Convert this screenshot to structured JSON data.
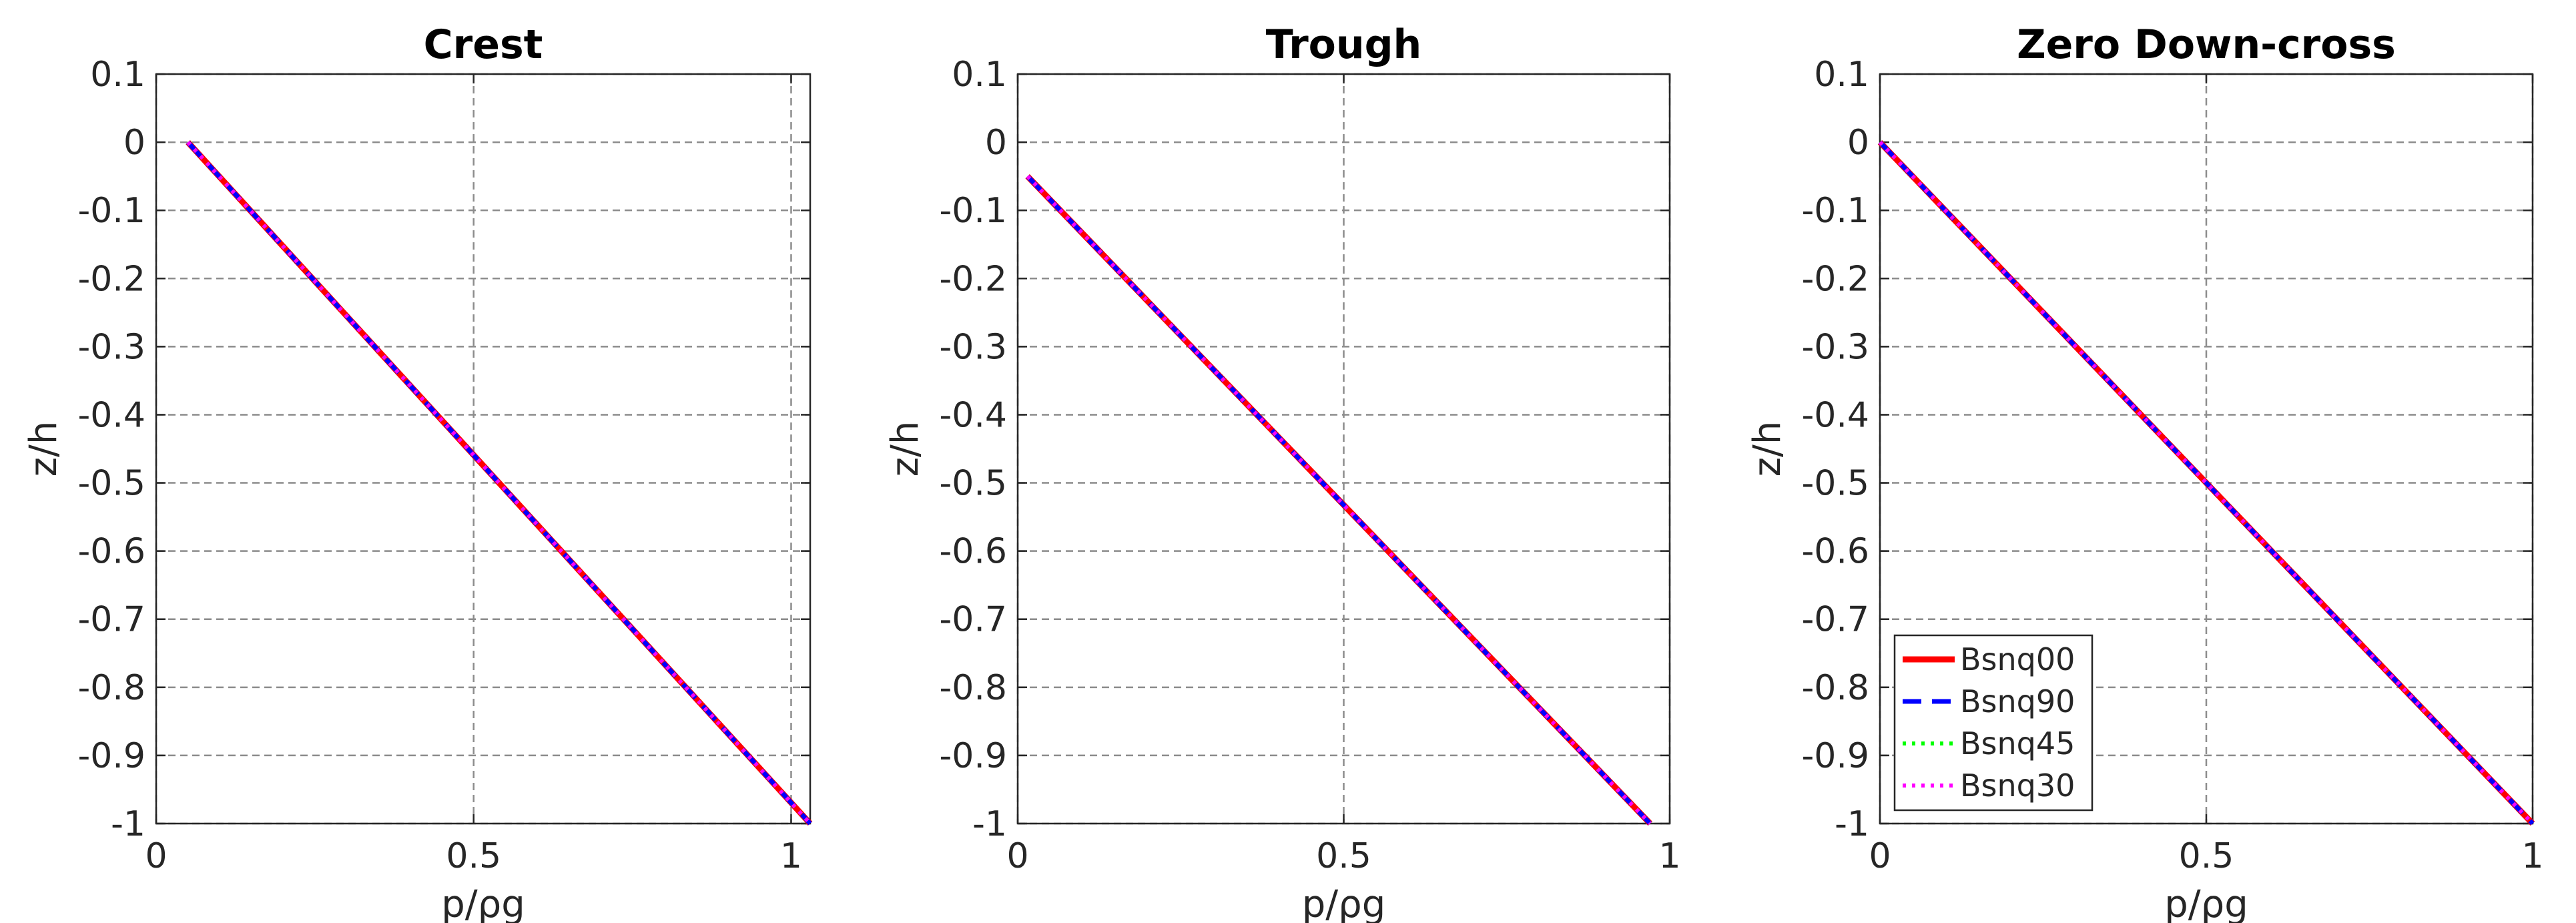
{
  "chart_data": [
    {
      "type": "line",
      "title": "Crest",
      "xlabel": "p/ρg",
      "ylabel": "z/h",
      "xlim": [
        0,
        1.03
      ],
      "ylim": [
        -1,
        0.1
      ],
      "xticks": [
        0,
        0.5,
        1
      ],
      "xtick_labels": [
        "0",
        "0.5",
        "1"
      ],
      "yticks": [
        0.1,
        0,
        -0.1,
        -0.2,
        -0.3,
        -0.4,
        -0.5,
        -0.6,
        -0.7,
        -0.8,
        -0.9,
        -1
      ],
      "ytick_labels": [
        "0.1",
        "0",
        "-0.1",
        "-0.2",
        "-0.3",
        "-0.4",
        "-0.5",
        "-0.6",
        "-0.7",
        "-0.8",
        "-0.9",
        "-1"
      ],
      "grid": true,
      "series": [
        {
          "name": "Bsnq00",
          "x": [
            0.05,
            1.03
          ],
          "y": [
            0,
            -1
          ]
        },
        {
          "name": "Bsnq90",
          "x": [
            0.05,
            1.03
          ],
          "y": [
            0,
            -1
          ]
        },
        {
          "name": "Bsnq45",
          "x": [
            0.05,
            1.03
          ],
          "y": [
            0,
            -1
          ]
        },
        {
          "name": "Bsnq30",
          "x": [
            0.05,
            1.03
          ],
          "y": [
            0,
            -1
          ]
        }
      ]
    },
    {
      "type": "line",
      "title": "Trough",
      "xlabel": "p/ρg",
      "ylabel": "z/h",
      "xlim": [
        0,
        1.0
      ],
      "ylim": [
        -1,
        0.1
      ],
      "xticks": [
        0,
        0.5,
        1
      ],
      "xtick_labels": [
        "0",
        "0.5",
        "1"
      ],
      "yticks": [
        0.1,
        0,
        -0.1,
        -0.2,
        -0.3,
        -0.4,
        -0.5,
        -0.6,
        -0.7,
        -0.8,
        -0.9,
        -1
      ],
      "ytick_labels": [
        "0.1",
        "0",
        "-0.1",
        "-0.2",
        "-0.3",
        "-0.4",
        "-0.5",
        "-0.6",
        "-0.7",
        "-0.8",
        "-0.9",
        "-1"
      ],
      "grid": true,
      "series": [
        {
          "name": "Bsnq00",
          "x": [
            0.015,
            0.97
          ],
          "y": [
            -0.05,
            -1
          ]
        },
        {
          "name": "Bsnq90",
          "x": [
            0.015,
            0.97
          ],
          "y": [
            -0.05,
            -1
          ]
        },
        {
          "name": "Bsnq45",
          "x": [
            0.015,
            0.97
          ],
          "y": [
            -0.05,
            -1
          ]
        },
        {
          "name": "Bsnq30",
          "x": [
            0.015,
            0.97
          ],
          "y": [
            -0.05,
            -1
          ]
        }
      ]
    },
    {
      "type": "line",
      "title": "Zero Down-cross",
      "xlabel": "p/ρg",
      "ylabel": "z/h",
      "xlim": [
        0,
        1.0
      ],
      "ylim": [
        -1,
        0.1
      ],
      "xticks": [
        0,
        0.5,
        1
      ],
      "xtick_labels": [
        "0",
        "0.5",
        "1"
      ],
      "yticks": [
        0.1,
        0,
        -0.1,
        -0.2,
        -0.3,
        -0.4,
        -0.5,
        -0.6,
        -0.7,
        -0.8,
        -0.9,
        -1
      ],
      "ytick_labels": [
        "0.1",
        "0",
        "-0.1",
        "-0.2",
        "-0.3",
        "-0.4",
        "-0.5",
        "-0.6",
        "-0.7",
        "-0.8",
        "-0.9",
        "-1"
      ],
      "grid": true,
      "legend": {
        "position": "bottom-left",
        "entries": [
          {
            "label": "Bsnq00",
            "color": "#ff0000",
            "style": "solid"
          },
          {
            "label": "Bsnq90",
            "color": "#0000ff",
            "style": "dashed"
          },
          {
            "label": "Bsnq45",
            "color": "#00ff00",
            "style": "dotted"
          },
          {
            "label": "Bsnq30",
            "color": "#ff00ff",
            "style": "dotted"
          }
        ]
      },
      "series": [
        {
          "name": "Bsnq00",
          "x": [
            0,
            1.0
          ],
          "y": [
            0,
            -1
          ]
        },
        {
          "name": "Bsnq90",
          "x": [
            0,
            1.0
          ],
          "y": [
            0,
            -1
          ]
        },
        {
          "name": "Bsnq45",
          "x": [
            0,
            1.0
          ],
          "y": [
            0,
            -1
          ]
        },
        {
          "name": "Bsnq30",
          "x": [
            0,
            1.0
          ],
          "y": [
            0,
            -1
          ]
        }
      ]
    }
  ],
  "series_styles": {
    "Bsnq00": {
      "color": "#ff0000",
      "style": "solid"
    },
    "Bsnq90": {
      "color": "#0000ff",
      "style": "dashed"
    },
    "Bsnq45": {
      "color": "#00ff00",
      "style": "dotted"
    },
    "Bsnq30": {
      "color": "#ff00ff",
      "style": "dotted"
    }
  }
}
